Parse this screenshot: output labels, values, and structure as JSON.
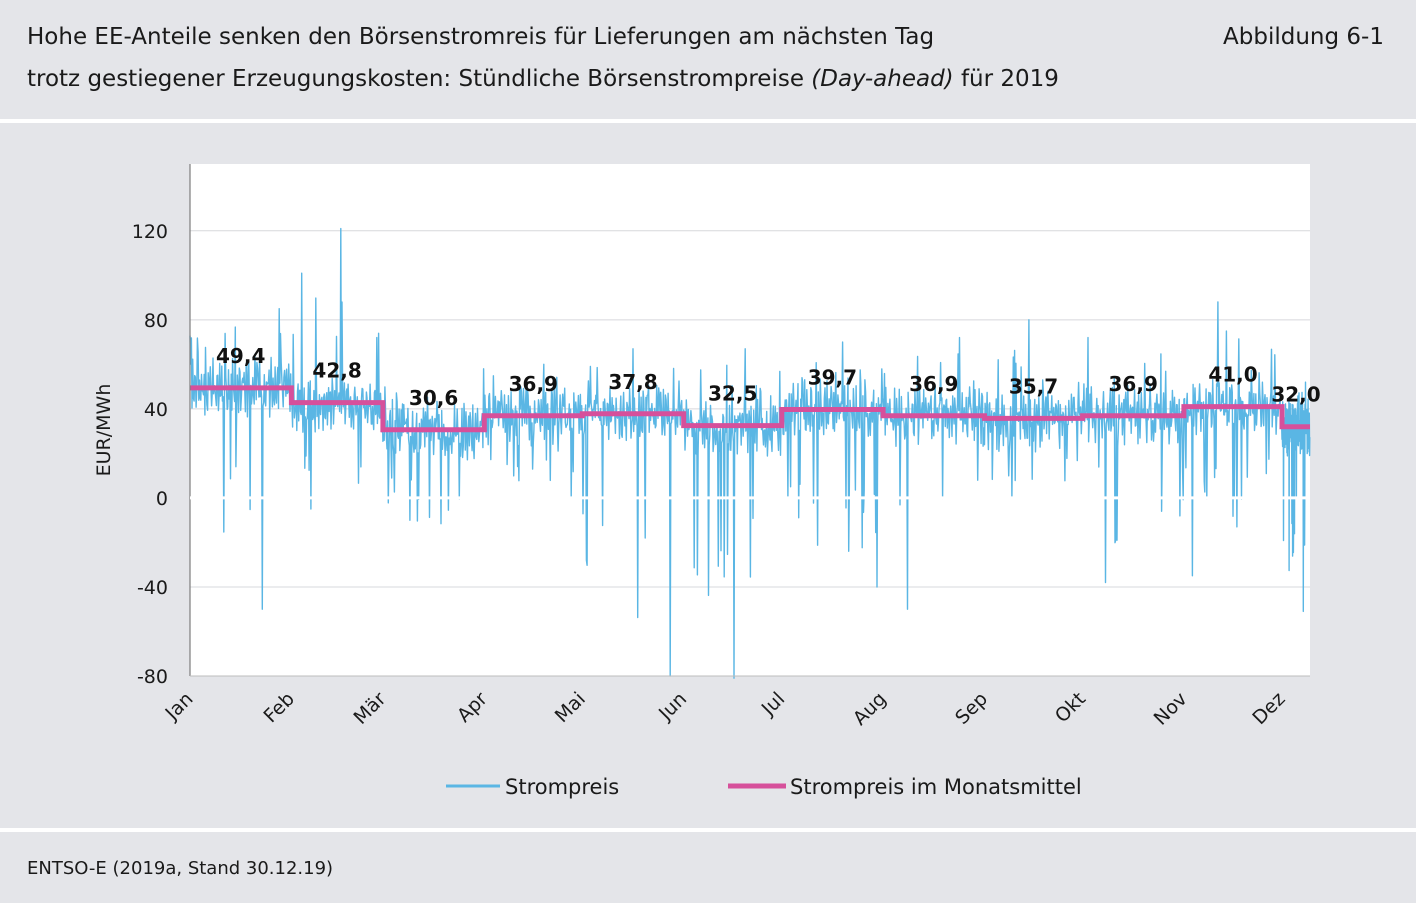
{
  "header": {
    "title_line1": "Hohe EE-Anteile senken den Börsenstromreis für Lieferungen am nächsten Tag",
    "title_line2_pre": "trotz gestiegener Erzeugungskosten: Stündliche Börsenstrompreise ",
    "title_line2_italic": "(Day-ahead)",
    "title_line2_post": " für 2019",
    "figure_number": "Abbildung 6-1"
  },
  "source": "ENTSO-E (2019a, Stand 30.12.19)",
  "colors": {
    "background": "#e4e5e9",
    "plot_background": "#ffffff",
    "strompreis": "#5ab6e4",
    "monatsmittel": "#d6509b"
  },
  "chart_data": {
    "type": "line",
    "title": "",
    "xlabel": "",
    "ylabel": "EUR/MWh",
    "ylim": [
      -80,
      150
    ],
    "yticks": [
      -80,
      -40,
      0,
      40,
      80,
      120
    ],
    "grid": true,
    "legend_position": "bottom",
    "categories": [
      "Jan",
      "Feb",
      "Mär",
      "Apr",
      "Mai",
      "Jun",
      "Jul",
      "Aug",
      "Sep",
      "Okt",
      "Nov",
      "Dez"
    ],
    "series": [
      {
        "name": "Strompreis",
        "kind": "hourly",
        "monthly_mean_estimate": [
          49.4,
          42.8,
          30.6,
          36.9,
          37.8,
          32.5,
          39.7,
          36.9,
          35.7,
          36.9,
          41.0,
          32.0
        ],
        "approx_monthly_min": [
          -50,
          -5,
          -24,
          0,
          -80,
          -81,
          -40,
          -50,
          0,
          -38,
          -35,
          -51
        ],
        "approx_monthly_max": [
          85,
          121,
          58,
          60,
          67,
          67,
          70,
          72,
          80,
          72,
          88,
          52
        ]
      },
      {
        "name": "Strompreis im Monatsmittel",
        "kind": "monthly_mean",
        "values": [
          49.4,
          42.8,
          30.6,
          36.9,
          37.8,
          32.5,
          39.7,
          36.9,
          35.7,
          36.9,
          41.0,
          32.0
        ],
        "labels": [
          "49,4",
          "42,8",
          "30,6",
          "36,9",
          "37,8",
          "32,5",
          "39,7",
          "36,9",
          "35,7",
          "36,9",
          "41,0",
          "32,0"
        ]
      }
    ]
  }
}
